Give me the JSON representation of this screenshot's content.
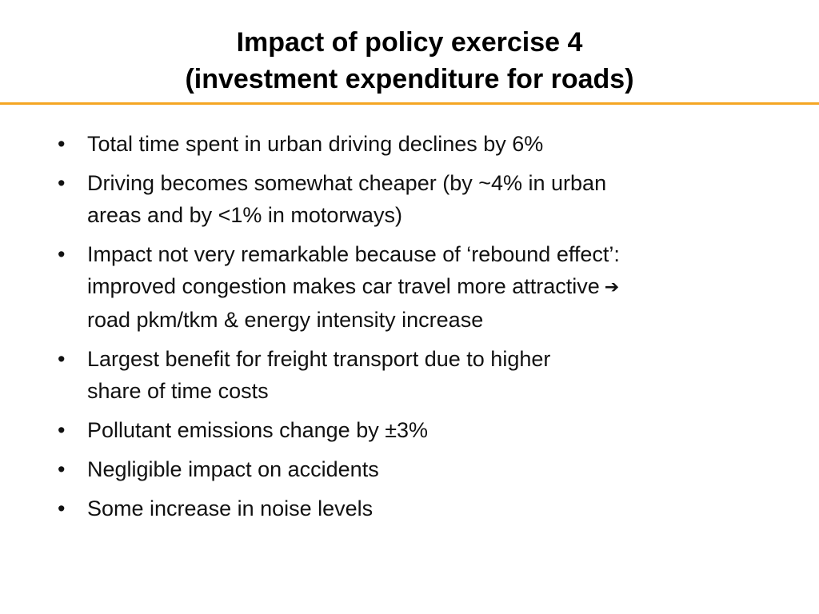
{
  "slide": {
    "title_line1": "Impact of policy exercise 4",
    "title_line2": "(investment expenditure for roads)",
    "accent_color": "#f5a623",
    "bullet_marker": "•",
    "bullets": [
      {
        "lines": [
          "Total time spent in urban driving declines by 6%"
        ]
      },
      {
        "lines": [
          "Driving becomes somewhat cheaper (by ~4% in urban",
          "areas and by <1% in motorways)"
        ]
      },
      {
        "lines": [
          "Impact not very remarkable because of ‘rebound effect’:",
          "improved congestion makes car travel more attractive",
          "road pkm/tkm & energy intensity increase"
        ],
        "arrow": "➔",
        "arrow_icon": "right-arrow-icon"
      },
      {
        "lines": [
          "Largest benefit for freight transport due to higher",
          "share of time costs"
        ]
      },
      {
        "lines": [
          "Pollutant emissions change by ±3%"
        ]
      },
      {
        "lines": [
          "Negligible impact on accidents"
        ]
      },
      {
        "lines": [
          "Some increase in noise levels"
        ]
      }
    ]
  }
}
